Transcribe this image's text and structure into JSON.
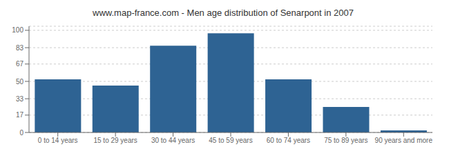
{
  "chart_data": {
    "type": "bar",
    "title": "www.map-france.com - Men age distribution of Senarpont in 2007",
    "categories": [
      "0 to 14 years",
      "15 to 29 years",
      "30 to 44 years",
      "45 to 59 years",
      "60 to 74 years",
      "75 to 89 years",
      "90 years and more"
    ],
    "values": [
      52,
      46,
      85,
      97,
      52,
      25,
      2
    ],
    "color": "#2e6393",
    "ylim": [
      0,
      104
    ],
    "yticks": [
      0,
      17,
      33,
      50,
      67,
      83,
      100
    ],
    "grid": true
  }
}
